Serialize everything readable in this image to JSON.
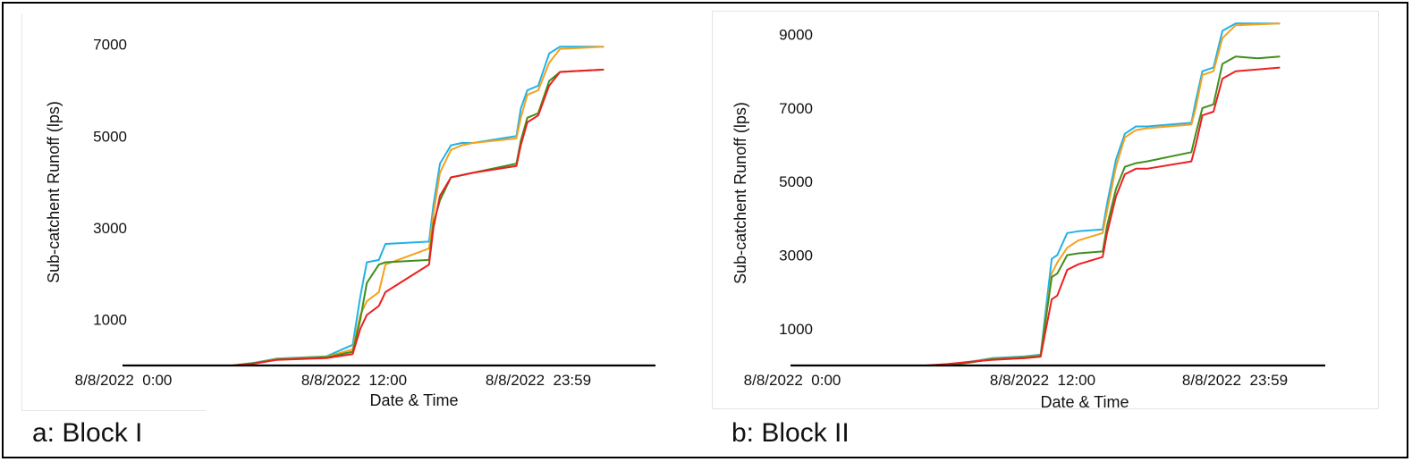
{
  "chart_data": [
    {
      "type": "line",
      "panel_caption": "a: Block I",
      "xlabel": "Date & Time",
      "ylabel": "Sub-catchent Runoff (lps)",
      "xlim": [
        0,
        24
      ],
      "ylim": [
        0,
        7500
      ],
      "x_ticks": [
        {
          "value": 0,
          "label": "8/8/2022  0:00"
        },
        {
          "value": 12,
          "label": "8/8/2022  12:00"
        },
        {
          "value": 23.98,
          "label": "8/8/2022  23:59"
        }
      ],
      "y_ticks": [
        1000,
        3000,
        5000,
        7000
      ],
      "grid": false,
      "legend": "none",
      "series": [
        {
          "color": "#1fb3e6",
          "x": [
            0,
            5,
            6,
            7,
            9.3,
            10.5,
            10.85,
            11.15,
            11.7,
            12,
            14,
            14.2,
            14.5,
            15,
            15.5,
            16,
            18,
            18.2,
            18.5,
            19,
            19.5,
            20,
            22
          ],
          "y": [
            0,
            0,
            60,
            150,
            200,
            450,
            1500,
            2250,
            2300,
            2650,
            2700,
            3500,
            4400,
            4800,
            4850,
            4850,
            5000,
            5600,
            6000,
            6100,
            6800,
            6950,
            6950
          ]
        },
        {
          "color": "#f5a11c",
          "x": [
            0,
            5,
            6,
            7,
            9.3,
            10.5,
            10.85,
            11.15,
            11.7,
            12,
            14,
            14.2,
            14.5,
            15,
            15.5,
            16,
            18,
            18.2,
            18.5,
            19,
            19.5,
            20,
            22
          ],
          "y": [
            0,
            0,
            55,
            140,
            190,
            350,
            1100,
            1400,
            1600,
            2200,
            2550,
            3300,
            4200,
            4700,
            4800,
            4850,
            4950,
            5400,
            5900,
            6000,
            6600,
            6900,
            6950
          ]
        },
        {
          "color": "#3f8f1f",
          "x": [
            0,
            5,
            6,
            7,
            9.3,
            10.5,
            10.85,
            11.15,
            11.7,
            12,
            14,
            14.2,
            14.5,
            15,
            15.5,
            16,
            18,
            18.2,
            18.5,
            19,
            19.5,
            20,
            22
          ],
          "y": [
            0,
            0,
            50,
            130,
            180,
            300,
            1000,
            1800,
            2200,
            2250,
            2300,
            3100,
            3600,
            4100,
            4150,
            4200,
            4400,
            4900,
            5400,
            5500,
            6200,
            6400,
            6450
          ]
        },
        {
          "color": "#ee1f1f",
          "x": [
            0,
            5,
            6,
            7,
            9.3,
            10.5,
            10.85,
            11.15,
            11.7,
            12,
            14,
            14.2,
            14.5,
            15,
            15.5,
            16,
            18,
            18.2,
            18.5,
            19,
            19.5,
            20,
            22
          ],
          "y": [
            0,
            0,
            40,
            120,
            160,
            250,
            800,
            1100,
            1300,
            1600,
            2200,
            3000,
            3700,
            4100,
            4150,
            4200,
            4350,
            4800,
            5300,
            5450,
            6100,
            6400,
            6450
          ]
        }
      ]
    },
    {
      "type": "line",
      "panel_caption": "b: Block II",
      "xlabel": "Date & Time",
      "ylabel": "Sub-catchent Runoff (lps)",
      "xlim": [
        0,
        24
      ],
      "ylim": [
        0,
        9500
      ],
      "x_ticks": [
        {
          "value": 0,
          "label": "8/8/2022  0:00"
        },
        {
          "value": 12,
          "label": "8/8/2022  12:00"
        },
        {
          "value": 23.98,
          "label": "8/8/2022  23:59"
        }
      ],
      "y_ticks": [
        1000,
        3000,
        5000,
        7000,
        9000
      ],
      "grid": false,
      "legend": "none",
      "series": [
        {
          "color": "#1fb3e6",
          "x": [
            0,
            7,
            8,
            9,
            10.5,
            11.2,
            11.7,
            11.95,
            12.4,
            12.9,
            14,
            14.2,
            14.6,
            15,
            15.5,
            16,
            18,
            18.2,
            18.5,
            19,
            19.4,
            20,
            22
          ],
          "y": [
            0,
            0,
            100,
            200,
            250,
            300,
            2900,
            3000,
            3600,
            3650,
            3700,
            4400,
            5600,
            6300,
            6500,
            6500,
            6600,
            7200,
            8000,
            8100,
            9100,
            9300,
            9300
          ]
        },
        {
          "color": "#f5a11c",
          "x": [
            0,
            7,
            8,
            9,
            10.5,
            11.2,
            11.7,
            11.95,
            12.4,
            12.9,
            14,
            14.2,
            14.6,
            15,
            15.5,
            16,
            18,
            18.2,
            18.5,
            19,
            19.4,
            20,
            22
          ],
          "y": [
            0,
            0,
            90,
            180,
            230,
            280,
            2500,
            2800,
            3200,
            3400,
            3600,
            4200,
            5400,
            6200,
            6400,
            6450,
            6550,
            7000,
            7900,
            8000,
            8900,
            9250,
            9300
          ]
        },
        {
          "color": "#3f8f1f",
          "x": [
            0,
            7,
            8,
            9,
            10.5,
            11.2,
            11.7,
            11.95,
            12.4,
            12.9,
            14,
            14.2,
            14.6,
            15,
            15.5,
            16,
            18,
            18.2,
            18.5,
            19,
            19.4,
            20,
            21,
            22
          ],
          "y": [
            0,
            0,
            80,
            170,
            220,
            260,
            2400,
            2500,
            3000,
            3050,
            3100,
            3800,
            4800,
            5400,
            5500,
            5550,
            5800,
            6300,
            7000,
            7100,
            8200,
            8400,
            8350,
            8400
          ]
        },
        {
          "color": "#ee1f1f",
          "x": [
            0,
            6,
            7,
            8,
            9,
            10.5,
            11.2,
            11.7,
            11.95,
            12.4,
            12.9,
            14,
            14.2,
            14.6,
            15,
            15.5,
            16,
            18,
            18.2,
            18.5,
            19,
            19.4,
            20,
            22
          ],
          "y": [
            0,
            0,
            40,
            100,
            150,
            200,
            240,
            1800,
            1900,
            2600,
            2750,
            2950,
            3600,
            4600,
            5200,
            5350,
            5350,
            5550,
            6000,
            6800,
            6900,
            7800,
            8000,
            8100
          ]
        }
      ]
    }
  ]
}
